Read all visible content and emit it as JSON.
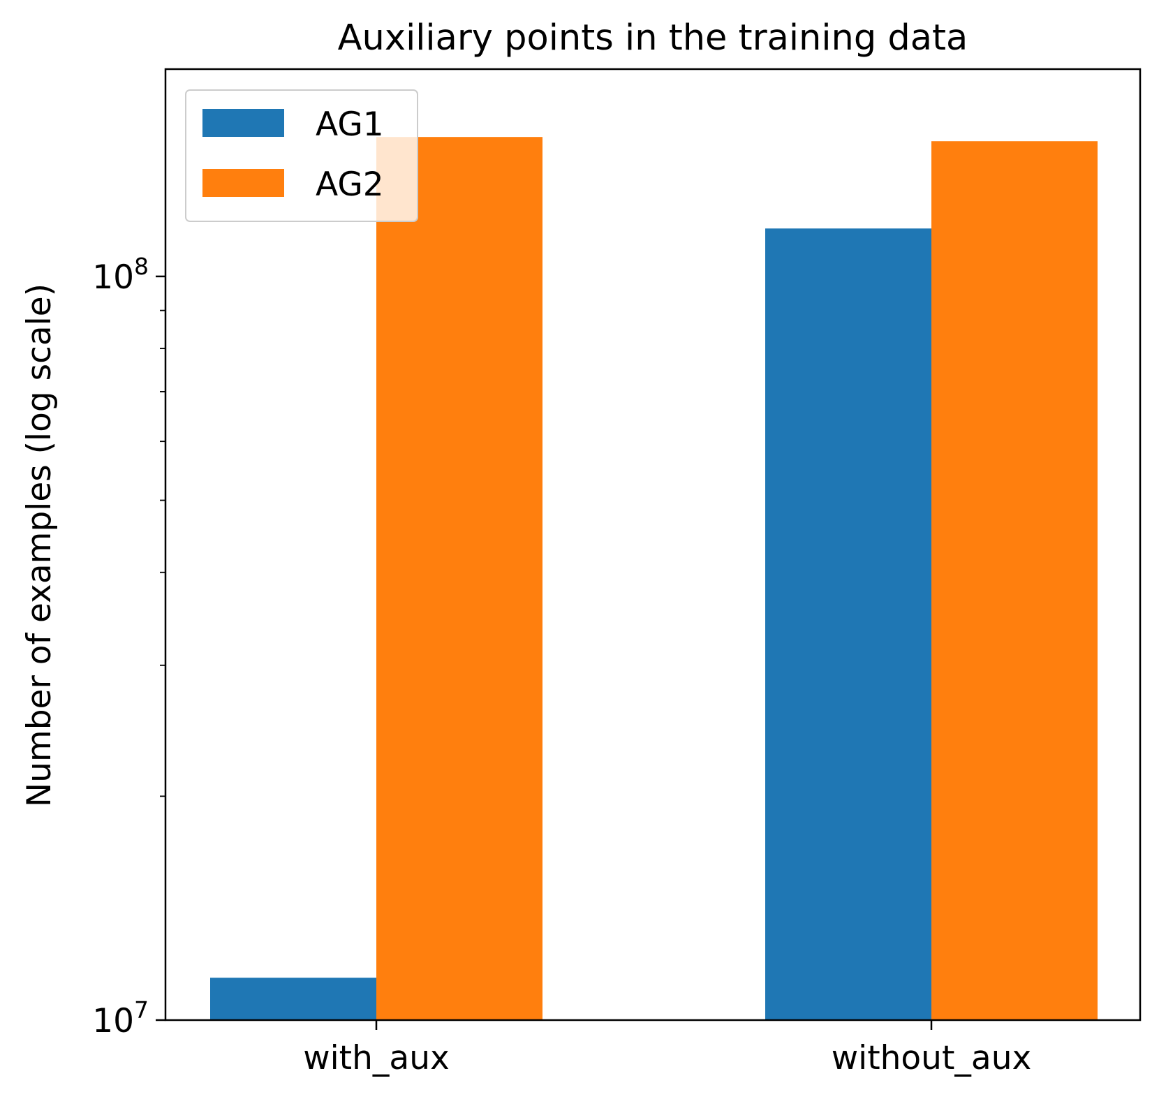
{
  "chart_data": {
    "type": "bar",
    "title": "Auxiliary points in the training data",
    "xlabel": "",
    "ylabel": "Number of examples (log scale)",
    "yscale": "log",
    "ylim": [
      10000000,
      190000000
    ],
    "categories": [
      "with_aux",
      "without_aux"
    ],
    "series": [
      {
        "name": "AG1",
        "color": "#1f77b4",
        "values": [
          11400000,
          116000000
        ]
      },
      {
        "name": "AG2",
        "color": "#ff7f0e",
        "values": [
          154000000,
          152000000
        ]
      }
    ],
    "y_ticks": [
      {
        "value": 10000000,
        "base": "10",
        "exp": "7"
      },
      {
        "value": 100000000,
        "base": "10",
        "exp": "8"
      }
    ],
    "y_minor_ticks": [
      20000000,
      30000000,
      40000000,
      50000000,
      60000000,
      70000000,
      80000000,
      90000000
    ],
    "grid": false,
    "legend_position": "top-left"
  }
}
